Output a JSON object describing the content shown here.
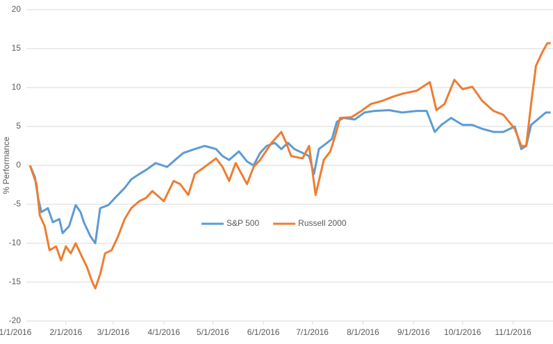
{
  "chart_data": {
    "type": "line",
    "y_label": "% Performance",
    "ylim": [
      -20,
      20
    ],
    "yticks": [
      -20,
      -15,
      -10,
      -5,
      0,
      5,
      10,
      15,
      20
    ],
    "grid": true,
    "legend": "center",
    "xlim": [
      0,
      329
    ],
    "xticks": [
      {
        "value": 0,
        "label": "1/1/2016"
      },
      {
        "value": 31,
        "label": "2/1/2016"
      },
      {
        "value": 60,
        "label": "3/1/2016"
      },
      {
        "value": 91,
        "label": "4/1/2016"
      },
      {
        "value": 121,
        "label": "5/1/2016"
      },
      {
        "value": 152,
        "label": "6/1/2016"
      },
      {
        "value": 182,
        "label": "7/1/2016"
      },
      {
        "value": 213,
        "label": "8/1/2016"
      },
      {
        "value": 244,
        "label": "9/1/2016"
      },
      {
        "value": 274,
        "label": "10/1/2016"
      },
      {
        "value": 305,
        "label": "11/1/2016"
      }
    ],
    "series": [
      {
        "name": "S&P 500",
        "color": "#5b9bd5",
        "x": [
          9,
          12,
          14,
          16,
          20,
          23,
          27,
          29,
          33,
          37,
          40,
          42,
          46,
          49,
          52,
          57,
          61,
          67,
          71,
          76,
          80,
          86,
          93,
          99,
          103,
          110,
          116,
          123,
          127,
          131,
          137,
          142,
          146,
          150,
          154,
          159,
          163,
          167,
          171,
          176,
          180,
          183,
          186,
          191,
          194,
          197,
          201,
          208,
          214,
          220,
          229,
          237,
          246,
          252,
          257,
          261,
          267,
          274,
          280,
          286,
          293,
          299,
          306,
          310,
          313,
          316,
          320,
          325,
          328
        ],
        "values": [
          0,
          -1.5,
          -4.2,
          -6,
          -5.5,
          -7.3,
          -6.9,
          -8.7,
          -7.8,
          -5.1,
          -6,
          -7.3,
          -9.1,
          -10,
          -5.5,
          -5.1,
          -4.2,
          -2.9,
          -1.8,
          -1.1,
          -0.6,
          0.3,
          -0.2,
          0.9,
          1.6,
          2.1,
          2.5,
          2.1,
          1.2,
          0.7,
          1.8,
          0.5,
          0,
          1.6,
          2.5,
          2.9,
          2.1,
          2.9,
          2.1,
          1.6,
          1.2,
          -1.1,
          2.1,
          2.9,
          3.4,
          5.6,
          6.1,
          5.9,
          6.8,
          7,
          7.1,
          6.8,
          7,
          7,
          4.3,
          5.2,
          6.1,
          5.2,
          5.2,
          4.7,
          4.3,
          4.3,
          5,
          2.1,
          2.5,
          5.2,
          5.9,
          6.8,
          6.8
        ]
      },
      {
        "name": "Russell 2000",
        "color": "#ed7d31",
        "x": [
          9,
          13,
          15,
          18,
          21,
          25,
          28,
          31,
          34,
          37,
          41,
          44,
          47,
          49,
          52,
          55,
          59,
          63,
          67,
          71,
          76,
          80,
          84,
          91,
          97,
          101,
          106,
          110,
          116,
          123,
          127,
          131,
          135,
          142,
          146,
          150,
          157,
          163,
          166,
          169,
          176,
          180,
          184,
          189,
          193,
          196,
          199,
          206,
          212,
          218,
          225,
          231,
          237,
          246,
          254,
          258,
          263,
          269,
          274,
          280,
          286,
          293,
          299,
          306,
          310,
          313,
          316,
          319,
          323,
          326,
          328
        ],
        "values": [
          0,
          -2.4,
          -6.4,
          -7.8,
          -10.9,
          -10.4,
          -12.2,
          -10.4,
          -11.3,
          -10,
          -11.8,
          -13.1,
          -14.9,
          -15.8,
          -14,
          -11.3,
          -10.9,
          -9.1,
          -6.9,
          -5.5,
          -4.6,
          -4.2,
          -3.3,
          -4.6,
          -2,
          -2.4,
          -3.8,
          -1.1,
          -0.2,
          0.9,
          -0.2,
          -2,
          0.3,
          -2.4,
          -0.2,
          0.7,
          2.9,
          4.3,
          2.9,
          1.2,
          0.9,
          2.5,
          -3.8,
          0.7,
          1.8,
          3.8,
          6.1,
          6.2,
          7,
          7.9,
          8.3,
          8.8,
          9.2,
          9.6,
          10.7,
          7.1,
          7.9,
          11,
          9.8,
          10.1,
          8.3,
          7,
          6.5,
          4.7,
          2.5,
          2.5,
          7.9,
          12.8,
          14.6,
          15.7,
          15.7
        ]
      }
    ]
  }
}
